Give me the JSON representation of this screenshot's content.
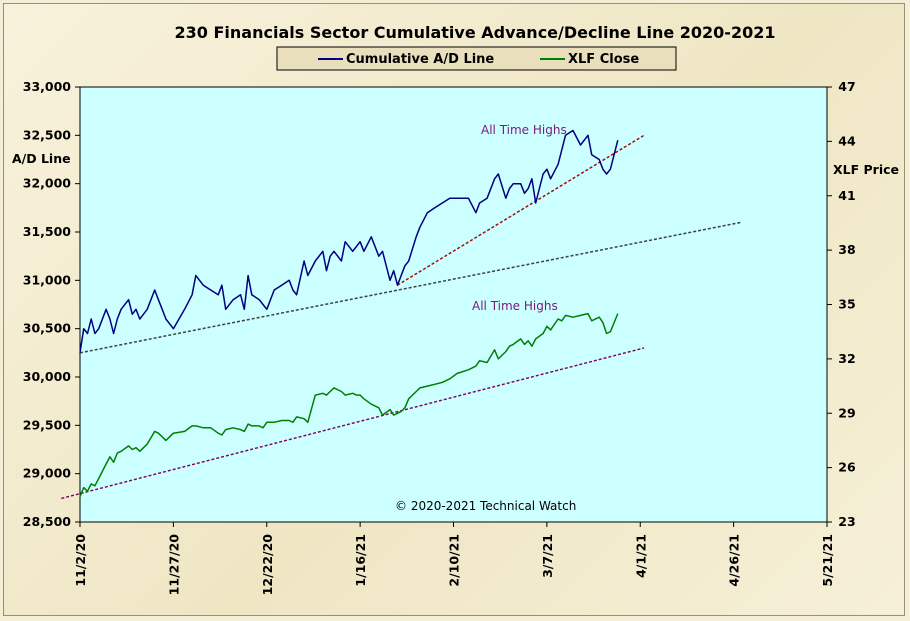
{
  "chart_data": {
    "type": "line",
    "title": "230 Financials  Sector Cumulative  Advance/Decline  Line 2020-2021",
    "ylabel_left": "A/D Line",
    "ylabel_right": "XLF Price",
    "x_tick_labels": [
      "11/2/20",
      "11/27/20",
      "12/22/20",
      "1/16/21",
      "2/10/21",
      "3/7/21",
      "4/1/21",
      "4/26/21",
      "5/21/21"
    ],
    "xlim": [
      "2020-11-02",
      "2021-05-21"
    ],
    "ylim_left": [
      28500,
      33000
    ],
    "ylim_right": [
      23,
      47
    ],
    "left_ticks": [
      "28,500",
      "29,000",
      "29,500",
      "30,000",
      "30,500",
      "31,000",
      "31,500",
      "32,000",
      "32,500",
      "33,000"
    ],
    "right_ticks": [
      "23",
      "26",
      "29",
      "32",
      "35",
      "38",
      "41",
      "44",
      "47"
    ],
    "legend": {
      "placement": "top-center",
      "entries": [
        "Cumulative A/D Line",
        "XLF Close"
      ]
    },
    "colors": {
      "ad_line": "#000080",
      "xlf": "#008000",
      "plot_bg": "#ccffff",
      "trend_red": "#a01010",
      "trend_gray": "#404040",
      "trend_purple": "#800060"
    },
    "annotations": [
      "All Time Highs",
      "All Time  Highs"
    ],
    "copyright": "© 2020-2021  Technical Watch",
    "series": [
      {
        "name": "Cumulative A/D Line",
        "axis": "left",
        "x": [
          "2020-11-02",
          "2020-11-03",
          "2020-11-04",
          "2020-11-05",
          "2020-11-06",
          "2020-11-07",
          "2020-11-09",
          "2020-11-10",
          "2020-11-11",
          "2020-11-12",
          "2020-11-13",
          "2020-11-15",
          "2020-11-16",
          "2020-11-17",
          "2020-11-18",
          "2020-11-19",
          "2020-11-20",
          "2020-11-22",
          "2020-11-23",
          "2020-11-24",
          "2020-11-25",
          "2020-11-27",
          "2020-11-30",
          "2020-12-02",
          "2020-12-03",
          "2020-12-05",
          "2020-12-07",
          "2020-12-09",
          "2020-12-10",
          "2020-12-11",
          "2020-12-13",
          "2020-12-15",
          "2020-12-16",
          "2020-12-17",
          "2020-12-18",
          "2020-12-20",
          "2020-12-21",
          "2020-12-22",
          "2020-12-24",
          "2020-12-26",
          "2020-12-28",
          "2020-12-29",
          "2020-12-30",
          "2021-01-01",
          "2021-01-02",
          "2021-01-04",
          "2021-01-06",
          "2021-01-07",
          "2021-01-08",
          "2021-01-09",
          "2021-01-11",
          "2021-01-12",
          "2021-01-14",
          "2021-01-15",
          "2021-01-16",
          "2021-01-17",
          "2021-01-19",
          "2021-01-21",
          "2021-01-22",
          "2021-01-24",
          "2021-01-25",
          "2021-01-26",
          "2021-01-27",
          "2021-01-28",
          "2021-01-29",
          "2021-01-31",
          "2021-02-01",
          "2021-02-03",
          "2021-02-05",
          "2021-02-07",
          "2021-02-09",
          "2021-02-11",
          "2021-02-14",
          "2021-02-16",
          "2021-02-17",
          "2021-02-19",
          "2021-02-21",
          "2021-02-22",
          "2021-02-24",
          "2021-02-25",
          "2021-02-26",
          "2021-02-28",
          "2021-03-01",
          "2021-03-02",
          "2021-03-03",
          "2021-03-04",
          "2021-03-06",
          "2021-03-07",
          "2021-03-08",
          "2021-03-10",
          "2021-03-11",
          "2021-03-12",
          "2021-03-14",
          "2021-03-16",
          "2021-03-18",
          "2021-03-19",
          "2021-03-21",
          "2021-03-22",
          "2021-03-23",
          "2021-03-24",
          "2021-03-26"
        ],
        "values": [
          30250,
          30500,
          30450,
          30600,
          30450,
          30500,
          30700,
          30600,
          30450,
          30600,
          30700,
          30800,
          30650,
          30700,
          30600,
          30650,
          30700,
          30900,
          30800,
          30700,
          30600,
          30500,
          30700,
          30850,
          31050,
          30950,
          30900,
          30850,
          30950,
          30700,
          30800,
          30850,
          30700,
          31050,
          30850,
          30800,
          30750,
          30700,
          30900,
          30950,
          31000,
          30900,
          30850,
          31200,
          31050,
          31200,
          31300,
          31100,
          31250,
          31300,
          31200,
          31400,
          31300,
          31350,
          31400,
          31300,
          31450,
          31250,
          31300,
          31000,
          31100,
          30950,
          31050,
          31150,
          31200,
          31450,
          31550,
          31700,
          31750,
          31800,
          31850,
          31850,
          31850,
          31700,
          31800,
          31850,
          32050,
          32100,
          31850,
          31950,
          32000,
          32000,
          31900,
          31950,
          32050,
          31800,
          32100,
          32150,
          32050,
          32200,
          32350,
          32500,
          32550,
          32400,
          32500,
          32300,
          32250,
          32150,
          32100,
          32150,
          32450
        ]
      },
      {
        "name": "XLF Close",
        "axis": "right",
        "x": [
          "2020-11-02",
          "2020-11-03",
          "2020-11-04",
          "2020-11-05",
          "2020-11-06",
          "2020-11-07",
          "2020-11-09",
          "2020-11-10",
          "2020-11-11",
          "2020-11-12",
          "2020-11-13",
          "2020-11-15",
          "2020-11-16",
          "2020-11-17",
          "2020-11-18",
          "2020-11-19",
          "2020-11-20",
          "2020-11-22",
          "2020-11-23",
          "2020-11-24",
          "2020-11-25",
          "2020-11-27",
          "2020-11-30",
          "2020-12-02",
          "2020-12-03",
          "2020-12-05",
          "2020-12-07",
          "2020-12-09",
          "2020-12-10",
          "2020-12-11",
          "2020-12-13",
          "2020-12-15",
          "2020-12-16",
          "2020-12-17",
          "2020-12-18",
          "2020-12-20",
          "2020-12-21",
          "2020-12-22",
          "2020-12-24",
          "2020-12-26",
          "2020-12-28",
          "2020-12-29",
          "2020-12-30",
          "2021-01-01",
          "2021-01-02",
          "2021-01-04",
          "2021-01-06",
          "2021-01-07",
          "2021-01-08",
          "2021-01-09",
          "2021-01-11",
          "2021-01-12",
          "2021-01-14",
          "2021-01-15",
          "2021-01-16",
          "2021-01-17",
          "2021-01-19",
          "2021-01-21",
          "2021-01-22",
          "2021-01-24",
          "2021-01-25",
          "2021-01-26",
          "2021-01-27",
          "2021-01-28",
          "2021-01-29",
          "2021-01-31",
          "2021-02-01",
          "2021-02-03",
          "2021-02-05",
          "2021-02-07",
          "2021-02-09",
          "2021-02-11",
          "2021-02-14",
          "2021-02-16",
          "2021-02-17",
          "2021-02-19",
          "2021-02-21",
          "2021-02-22",
          "2021-02-24",
          "2021-02-25",
          "2021-02-26",
          "2021-02-28",
          "2021-03-01",
          "2021-03-02",
          "2021-03-03",
          "2021-03-04",
          "2021-03-06",
          "2021-03-07",
          "2021-03-08",
          "2021-03-10",
          "2021-03-11",
          "2021-03-12",
          "2021-03-14",
          "2021-03-16",
          "2021-03-18",
          "2021-03-19",
          "2021-03-21",
          "2021-03-22",
          "2021-03-23",
          "2021-03-24",
          "2021-03-26"
        ],
        "values": [
          24.4,
          24.9,
          24.7,
          25.1,
          25.0,
          25.4,
          26.2,
          26.6,
          26.3,
          26.8,
          26.9,
          27.2,
          27.0,
          27.1,
          26.9,
          27.1,
          27.3,
          28.0,
          27.9,
          27.7,
          27.5,
          27.9,
          28.0,
          28.3,
          28.3,
          28.2,
          28.2,
          27.9,
          27.8,
          28.1,
          28.2,
          28.1,
          28.0,
          28.4,
          28.3,
          28.3,
          28.2,
          28.5,
          28.5,
          28.6,
          28.6,
          28.5,
          28.8,
          28.7,
          28.5,
          30.0,
          30.1,
          30.0,
          30.2,
          30.4,
          30.2,
          30.0,
          30.1,
          30.0,
          30.0,
          29.8,
          29.5,
          29.3,
          28.9,
          29.2,
          28.9,
          29.0,
          29.1,
          29.3,
          29.8,
          30.2,
          30.4,
          30.5,
          30.6,
          30.7,
          30.9,
          31.2,
          31.4,
          31.6,
          31.9,
          31.8,
          32.5,
          32.0,
          32.4,
          32.7,
          32.8,
          33.1,
          32.8,
          33.0,
          32.7,
          33.1,
          33.4,
          33.8,
          33.6,
          34.2,
          34.1,
          34.4,
          34.3,
          34.4,
          34.5,
          34.1,
          34.3,
          34.0,
          33.4,
          33.5,
          34.5
        ]
      }
    ],
    "trend_lines": [
      {
        "axis": "left",
        "color": "trend_red",
        "x": [
          "2021-01-26",
          "2021-04-02"
        ],
        "values": [
          30950,
          32500
        ]
      },
      {
        "axis": "left",
        "color": "trend_gray",
        "x": [
          "2020-11-02",
          "2021-04-28"
        ],
        "values": [
          30250,
          31600
        ]
      },
      {
        "axis": "right",
        "color": "trend_purple",
        "x": [
          "2020-10-28",
          "2021-04-02"
        ],
        "values": [
          24.3,
          32.6
        ]
      }
    ]
  }
}
